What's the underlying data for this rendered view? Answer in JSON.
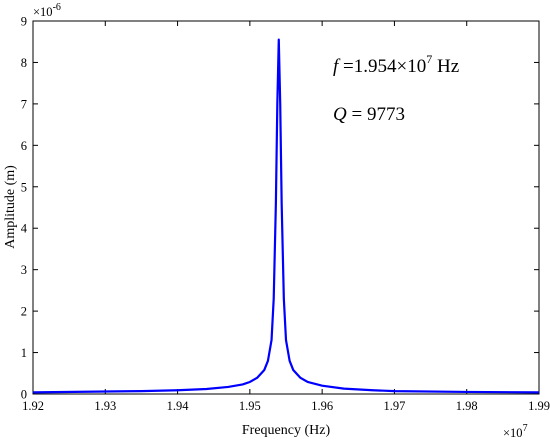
{
  "chart_data": {
    "type": "line",
    "title": "",
    "xlabel": "Frequency (Hz)",
    "ylabel": "Amplitude (m)",
    "x_multiplier_label": {
      "base": "×10",
      "exp": "7"
    },
    "y_multiplier_label": {
      "base": "×10",
      "exp": "-6"
    },
    "xlim": [
      1.92,
      1.99
    ],
    "ylim": [
      0,
      9
    ],
    "x_ticks": [
      "1.92",
      "1.93",
      "1.94",
      "1.95",
      "1.96",
      "1.97",
      "1.98",
      "1.99"
    ],
    "y_ticks": [
      "0",
      "1",
      "2",
      "3",
      "4",
      "5",
      "6",
      "7",
      "8",
      "9"
    ],
    "grid": false,
    "line_color": "#0000ff",
    "series": [
      {
        "x": [
          1.92,
          1.93,
          1.935,
          1.94,
          1.944,
          1.947,
          1.949,
          1.95,
          1.951,
          1.952,
          1.9525,
          1.953,
          1.9533,
          1.9536,
          1.9538,
          1.954,
          1.9542,
          1.9544,
          1.9547,
          1.955,
          1.9555,
          1.956,
          1.957,
          1.958,
          1.96,
          1.963,
          1.967,
          1.97,
          1.98,
          1.99
        ],
        "y": [
          0.04,
          0.06,
          0.07,
          0.09,
          0.12,
          0.17,
          0.23,
          0.29,
          0.39,
          0.58,
          0.8,
          1.3,
          2.3,
          4.6,
          7.0,
          8.55,
          7.0,
          4.6,
          2.3,
          1.3,
          0.8,
          0.58,
          0.39,
          0.29,
          0.2,
          0.13,
          0.09,
          0.07,
          0.05,
          0.04
        ]
      }
    ],
    "annotations": [
      {
        "italic": "f",
        "text": " =1.954×10",
        "sup": "7",
        "suffix": " Hz"
      },
      {
        "italic": "Q",
        "text": " = 9773"
      }
    ]
  }
}
